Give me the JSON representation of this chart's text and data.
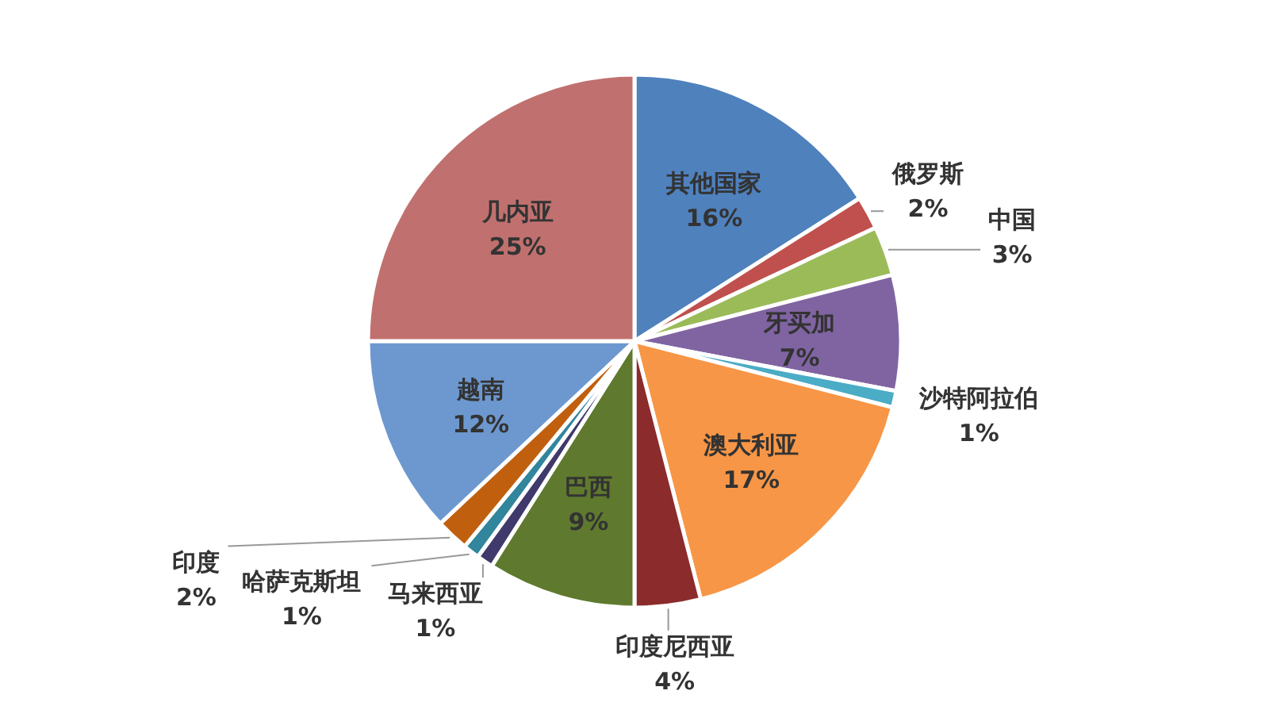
{
  "chart_data": {
    "type": "pie",
    "categories": [
      "其他国家",
      "俄罗斯",
      "中国",
      "牙买加",
      "沙特阿拉伯",
      "澳大利亚",
      "印度尼西亚",
      "巴西",
      "马来西亚",
      "哈萨克斯坦",
      "印度",
      "越南",
      "几内亚"
    ],
    "values": [
      16,
      2,
      3,
      7,
      1,
      17,
      4,
      9,
      1,
      1,
      2,
      12,
      25
    ],
    "colors": [
      "#4f81bd",
      "#c0504d",
      "#9bbb59",
      "#8064a2",
      "#4bacc6",
      "#f79646",
      "#8b2b2b",
      "#5f7a2e",
      "#3f3a6b",
      "#31859c",
      "#c0600f",
      "#6d98cf",
      "#c0716f"
    ],
    "value_labels": [
      "16%",
      "2%",
      "3%",
      "7%",
      "1%",
      "17%",
      "4%",
      "9%",
      "1%",
      "1%",
      "2%",
      "12%",
      "25%"
    ]
  }
}
